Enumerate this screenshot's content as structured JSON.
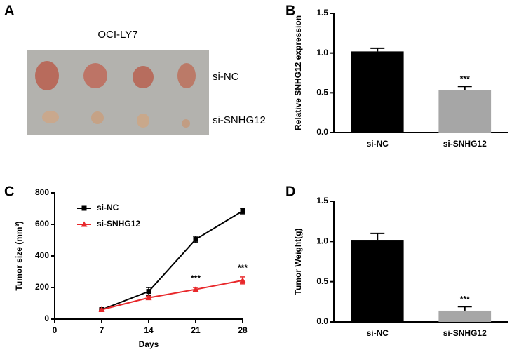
{
  "panel_a": {
    "panel_label": "A",
    "title": "OCI-LY7",
    "row_labels": [
      "si-NC",
      "si-SNHG12"
    ]
  },
  "chart_data": [
    {
      "type": "bar",
      "panel_label": "B",
      "y_label": "Relative SNHG12 expression",
      "categories": [
        "si-NC",
        "si-SNHG12"
      ],
      "values": [
        1.02,
        0.53
      ],
      "errors": [
        0.04,
        0.05
      ],
      "colors": [
        "#000000",
        "#a6a6a6"
      ],
      "significance": [
        null,
        "***"
      ],
      "ylim": [
        0,
        1.5
      ],
      "yticks": [
        {
          "value": 0,
          "label": "0.0"
        },
        0.5,
        {
          "value": 1,
          "label": "1.0"
        },
        1.5
      ]
    },
    {
      "type": "line",
      "panel_label": "C",
      "x_label": "Days",
      "y_label": "Tumor size (mm³)",
      "x": [
        7,
        14,
        21,
        28
      ],
      "xlim": [
        0,
        28
      ],
      "xticks": [
        0,
        7,
        14,
        21,
        28
      ],
      "ylim": [
        0,
        800
      ],
      "yticks": [
        0,
        200,
        400,
        600,
        800
      ],
      "series": [
        {
          "name": "si-NC",
          "color": "#000000",
          "marker": "square",
          "values": [
            60,
            175,
            505,
            685
          ],
          "errors": [
            5,
            25,
            20,
            18
          ]
        },
        {
          "name": "si-SNHG12",
          "color": "#e8282b",
          "marker": "triangle",
          "values": [
            60,
            135,
            188,
            245
          ],
          "errors": [
            5,
            10,
            12,
            22
          ],
          "significance": [
            null,
            null,
            "***",
            "***"
          ]
        }
      ]
    },
    {
      "type": "bar",
      "panel_label": "D",
      "y_label": "Tumor Weight(g)",
      "categories": [
        "si-NC",
        "si-SNHG12"
      ],
      "values": [
        1.02,
        0.14
      ],
      "errors": [
        0.08,
        0.05
      ],
      "colors": [
        "#000000",
        "#a6a6a6"
      ],
      "significance": [
        null,
        "***"
      ],
      "ylim": [
        0,
        1.5
      ],
      "yticks": [
        {
          "value": 0,
          "label": "0.0"
        },
        0.5,
        {
          "value": 1,
          "label": "1.0"
        },
        1.5
      ]
    }
  ]
}
